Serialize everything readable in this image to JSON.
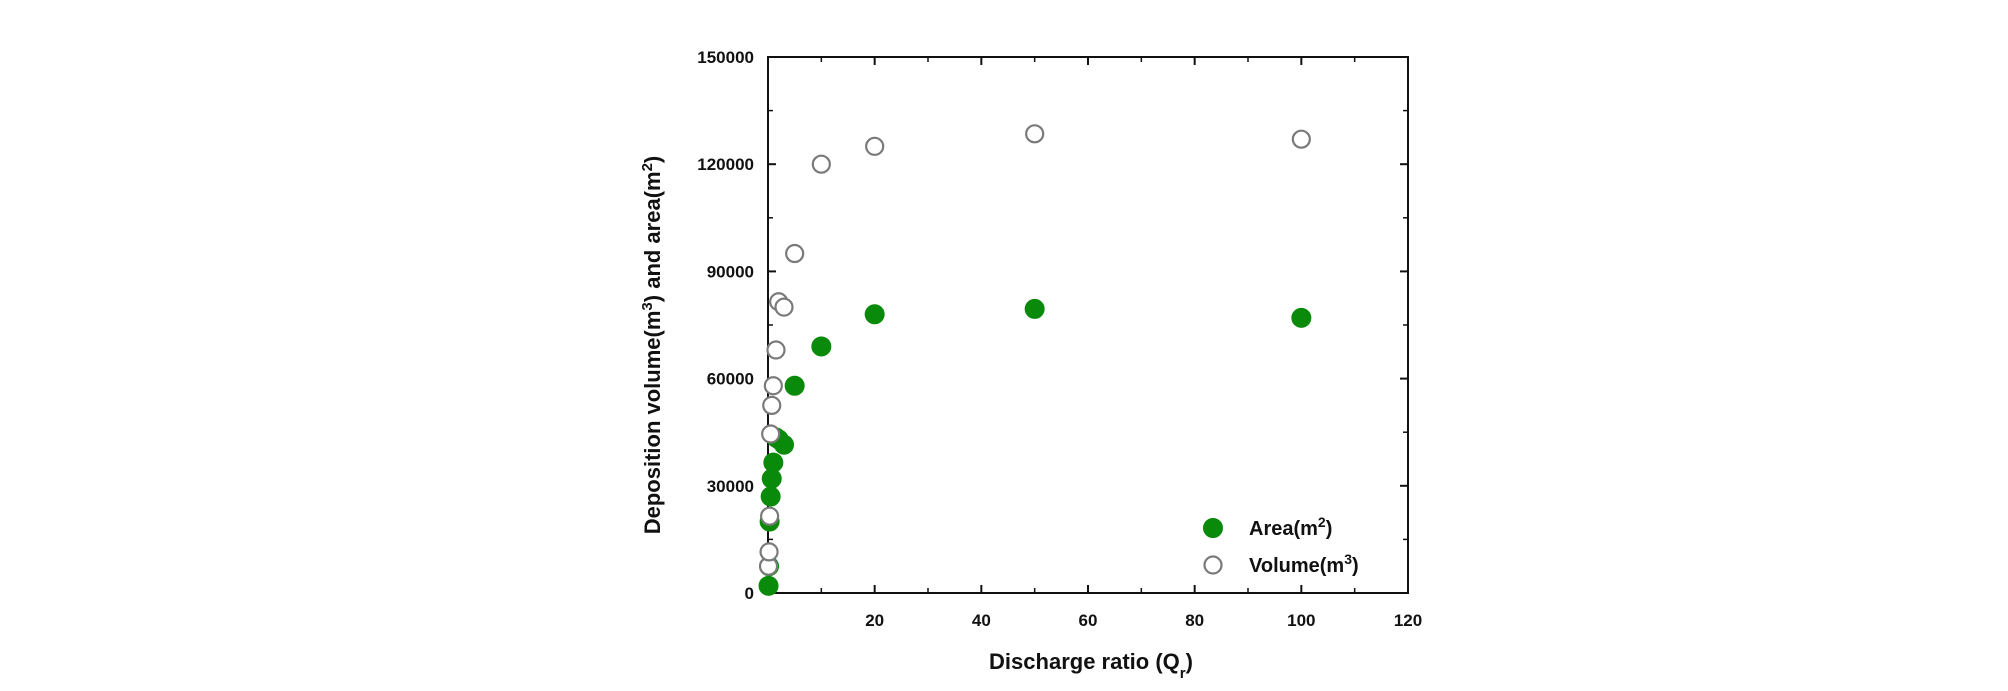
{
  "chart_data": {
    "type": "scatter",
    "xlabel": {
      "text": "Discharge ratio (Q",
      "sub": "r",
      "end": ")"
    },
    "ylabel": {
      "p1": "Deposition volume(m",
      "sup1": "3",
      "p2": ") and area(m",
      "sup2": "2",
      "p3": ")"
    },
    "xlim": [
      0,
      120
    ],
    "ylim": [
      0,
      150000
    ],
    "xticks": [
      20,
      40,
      60,
      80,
      100,
      120
    ],
    "yticks": [
      0,
      30000,
      60000,
      90000,
      120000,
      150000
    ],
    "grid": false,
    "legend_position": "bottom-right",
    "series": [
      {
        "name": {
          "text": "Area(m",
          "sup": "2",
          "end": ")"
        },
        "marker": "filled-circle",
        "color": "#0a8a0a",
        "points": [
          [
            0.1,
            2000
          ],
          [
            0.2,
            7500
          ],
          [
            0.3,
            20000
          ],
          [
            0.5,
            27000
          ],
          [
            0.7,
            32000
          ],
          [
            1,
            36500
          ],
          [
            1.5,
            43500
          ],
          [
            2,
            43000
          ],
          [
            3,
            41500
          ],
          [
            5,
            58000
          ],
          [
            10,
            69000
          ],
          [
            20,
            78000
          ],
          [
            50,
            79500
          ],
          [
            100,
            77000
          ]
        ]
      },
      {
        "name": {
          "text": "Volume(m",
          "sup": "3",
          "end": ")"
        },
        "marker": "open-circle",
        "color": "#7a7a7a",
        "points": [
          [
            0.1,
            7500
          ],
          [
            0.2,
            11500
          ],
          [
            0.3,
            21500
          ],
          [
            0.5,
            44500
          ],
          [
            0.7,
            52500
          ],
          [
            1,
            58000
          ],
          [
            1.5,
            68000
          ],
          [
            2,
            81500
          ],
          [
            3,
            80000
          ],
          [
            5,
            95000
          ],
          [
            10,
            120000
          ],
          [
            20,
            125000
          ],
          [
            50,
            128500
          ],
          [
            100,
            127000
          ]
        ]
      }
    ]
  }
}
